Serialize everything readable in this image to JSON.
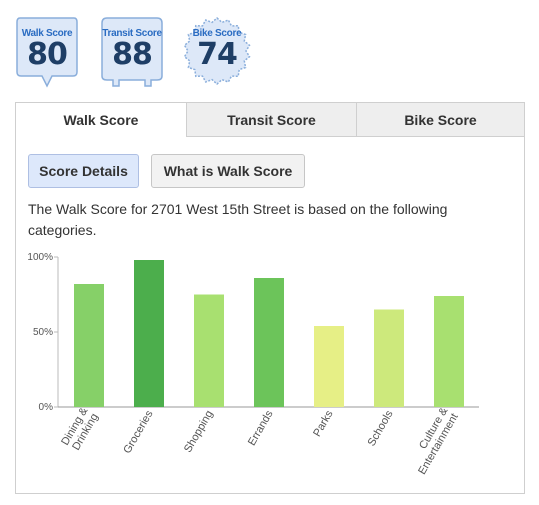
{
  "badges": [
    {
      "label": "Walk Score",
      "value": "80"
    },
    {
      "label": "Transit Score",
      "value": "88"
    },
    {
      "label": "Bike Score",
      "value": "74"
    }
  ],
  "tabs": [
    {
      "label": "Walk Score",
      "active": true
    },
    {
      "label": "Transit Score",
      "active": false
    },
    {
      "label": "Bike Score",
      "active": false
    }
  ],
  "buttons": {
    "score_details": "Score Details",
    "what_is": "What is Walk Score"
  },
  "description": "The Walk Score for 2701 West 15th Street is based on the following categories.",
  "colors": {
    "badge_fill": "#dde8f8",
    "badge_stroke": "#8aaedb",
    "bar_dark": "#4cae4c",
    "bar_mid": "#6cc45a",
    "bar_light": "#86d068",
    "bar_pale": "#a8e070",
    "bar_yellow": "#e6ef86",
    "bar_lime": "#cde97c"
  },
  "chart_data": {
    "type": "bar",
    "categories": [
      "Dining & Drinking",
      "Groceries",
      "Shopping",
      "Errands",
      "Parks",
      "Schools",
      "Culture & Entertainment"
    ],
    "values": [
      82,
      98,
      75,
      86,
      54,
      65,
      74
    ],
    "bar_colors": [
      "#86d068",
      "#4cae4c",
      "#a8e070",
      "#6cc45a",
      "#e6ef86",
      "#cde97c",
      "#a8e070"
    ],
    "yticks": [
      "0%",
      "50%",
      "100%"
    ],
    "ylim": [
      0,
      100
    ]
  }
}
